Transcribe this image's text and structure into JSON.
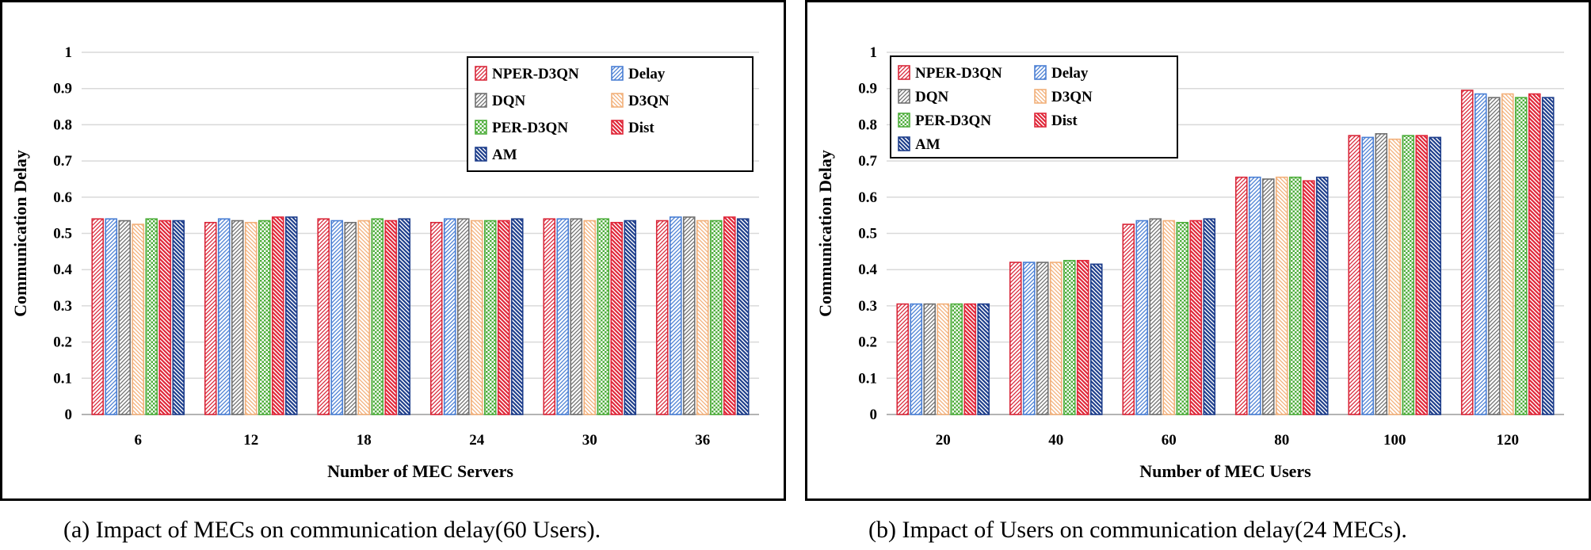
{
  "colors": {
    "NPER-D3QN": "#d9283a",
    "Delay": "#4a7fd4",
    "DQN": "#707070",
    "D3QN": "#f2b07a",
    "PER-D3QN": "#4fae3c",
    "Dist": "#e0283a",
    "AM": "#1f3f8c"
  },
  "chart_data": [
    {
      "type": "bar",
      "panel": "a",
      "caption": "(a)  Impact of MECs on communication delay(60 Users).",
      "xlabel": "Number of MEC Servers",
      "ylabel": "Communication Delay",
      "ylim": [
        0,
        1
      ],
      "yticks": [
        "0",
        "0.1",
        "0.2",
        "0.3",
        "0.4",
        "0.5",
        "0.6",
        "0.7",
        "0.8",
        "0.9",
        "1"
      ],
      "grid": true,
      "legend_position": "top-right",
      "categories": [
        "6",
        "12",
        "18",
        "24",
        "30",
        "36"
      ],
      "series": [
        {
          "name": "NPER-D3QN",
          "values": [
            0.54,
            0.53,
            0.54,
            0.53,
            0.54,
            0.535
          ]
        },
        {
          "name": "Delay",
          "values": [
            0.54,
            0.54,
            0.535,
            0.54,
            0.54,
            0.545
          ]
        },
        {
          "name": "DQN",
          "values": [
            0.535,
            0.535,
            0.53,
            0.54,
            0.54,
            0.545
          ]
        },
        {
          "name": "D3QN",
          "values": [
            0.525,
            0.53,
            0.535,
            0.535,
            0.535,
            0.535
          ]
        },
        {
          "name": "PER-D3QN",
          "values": [
            0.54,
            0.535,
            0.54,
            0.535,
            0.54,
            0.535
          ]
        },
        {
          "name": "Dist",
          "values": [
            0.535,
            0.545,
            0.535,
            0.535,
            0.53,
            0.545
          ]
        },
        {
          "name": "AM",
          "values": [
            0.535,
            0.545,
            0.54,
            0.54,
            0.535,
            0.54
          ]
        }
      ]
    },
    {
      "type": "bar",
      "panel": "b",
      "caption": "(b)  Impact of Users on communication delay(24 MECs).",
      "xlabel": "Number of MEC Users",
      "ylabel": "Communication Delay",
      "ylim": [
        0,
        1
      ],
      "yticks": [
        "0",
        "0.1",
        "0.2",
        "0.3",
        "0.4",
        "0.5",
        "0.6",
        "0.7",
        "0.8",
        "0.9",
        "1"
      ],
      "grid": true,
      "legend_position": "top-left",
      "categories": [
        "20",
        "40",
        "60",
        "80",
        "100",
        "120"
      ],
      "series": [
        {
          "name": "NPER-D3QN",
          "values": [
            0.305,
            0.42,
            0.525,
            0.655,
            0.77,
            0.895
          ]
        },
        {
          "name": "Delay",
          "values": [
            0.305,
            0.42,
            0.535,
            0.655,
            0.765,
            0.885
          ]
        },
        {
          "name": "DQN",
          "values": [
            0.305,
            0.42,
            0.54,
            0.65,
            0.775,
            0.875
          ]
        },
        {
          "name": "D3QN",
          "values": [
            0.305,
            0.42,
            0.535,
            0.655,
            0.76,
            0.885
          ]
        },
        {
          "name": "PER-D3QN",
          "values": [
            0.305,
            0.425,
            0.53,
            0.655,
            0.77,
            0.875
          ]
        },
        {
          "name": "Dist",
          "values": [
            0.305,
            0.425,
            0.535,
            0.645,
            0.77,
            0.885
          ]
        },
        {
          "name": "AM",
          "values": [
            0.305,
            0.415,
            0.54,
            0.655,
            0.765,
            0.875
          ]
        }
      ]
    }
  ]
}
